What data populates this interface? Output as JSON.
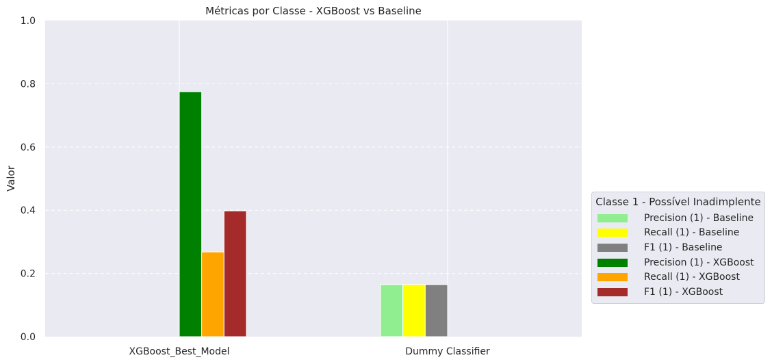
{
  "chart_data": {
    "type": "bar",
    "title": "Métricas por Classe - XGBoost vs Baseline",
    "xlabel": "",
    "ylabel": "Valor",
    "ylim": [
      0,
      1.0
    ],
    "yticks": [
      "0.0",
      "0.2",
      "0.4",
      "0.6",
      "0.8",
      "1.0"
    ],
    "grid": true,
    "categories": [
      "XGBoost_Best_Model",
      "Dummy Classifier"
    ],
    "series": [
      {
        "name": "Precision (1) - Baseline",
        "color": "#90ee90",
        "values": [
          null,
          0.165
        ]
      },
      {
        "name": "Recall (1) - Baseline",
        "color": "#ffff00",
        "values": [
          null,
          0.165
        ]
      },
      {
        "name": "F1 (1) - Baseline",
        "color": "#808080",
        "values": [
          null,
          0.165
        ]
      },
      {
        "name": "Precision (1) - XGBoost",
        "color": "#008000",
        "values": [
          0.775,
          null
        ]
      },
      {
        "name": "Recall (1) - XGBoost",
        "color": "#ffa500",
        "values": [
          0.268,
          null
        ]
      },
      {
        "name": "F1 (1) - XGBoost",
        "color": "#a52a2a",
        "values": [
          0.398,
          null
        ]
      }
    ],
    "legend": {
      "title": "Classe 1 - Possível Inadimplente",
      "placement": "center-right outside"
    }
  }
}
